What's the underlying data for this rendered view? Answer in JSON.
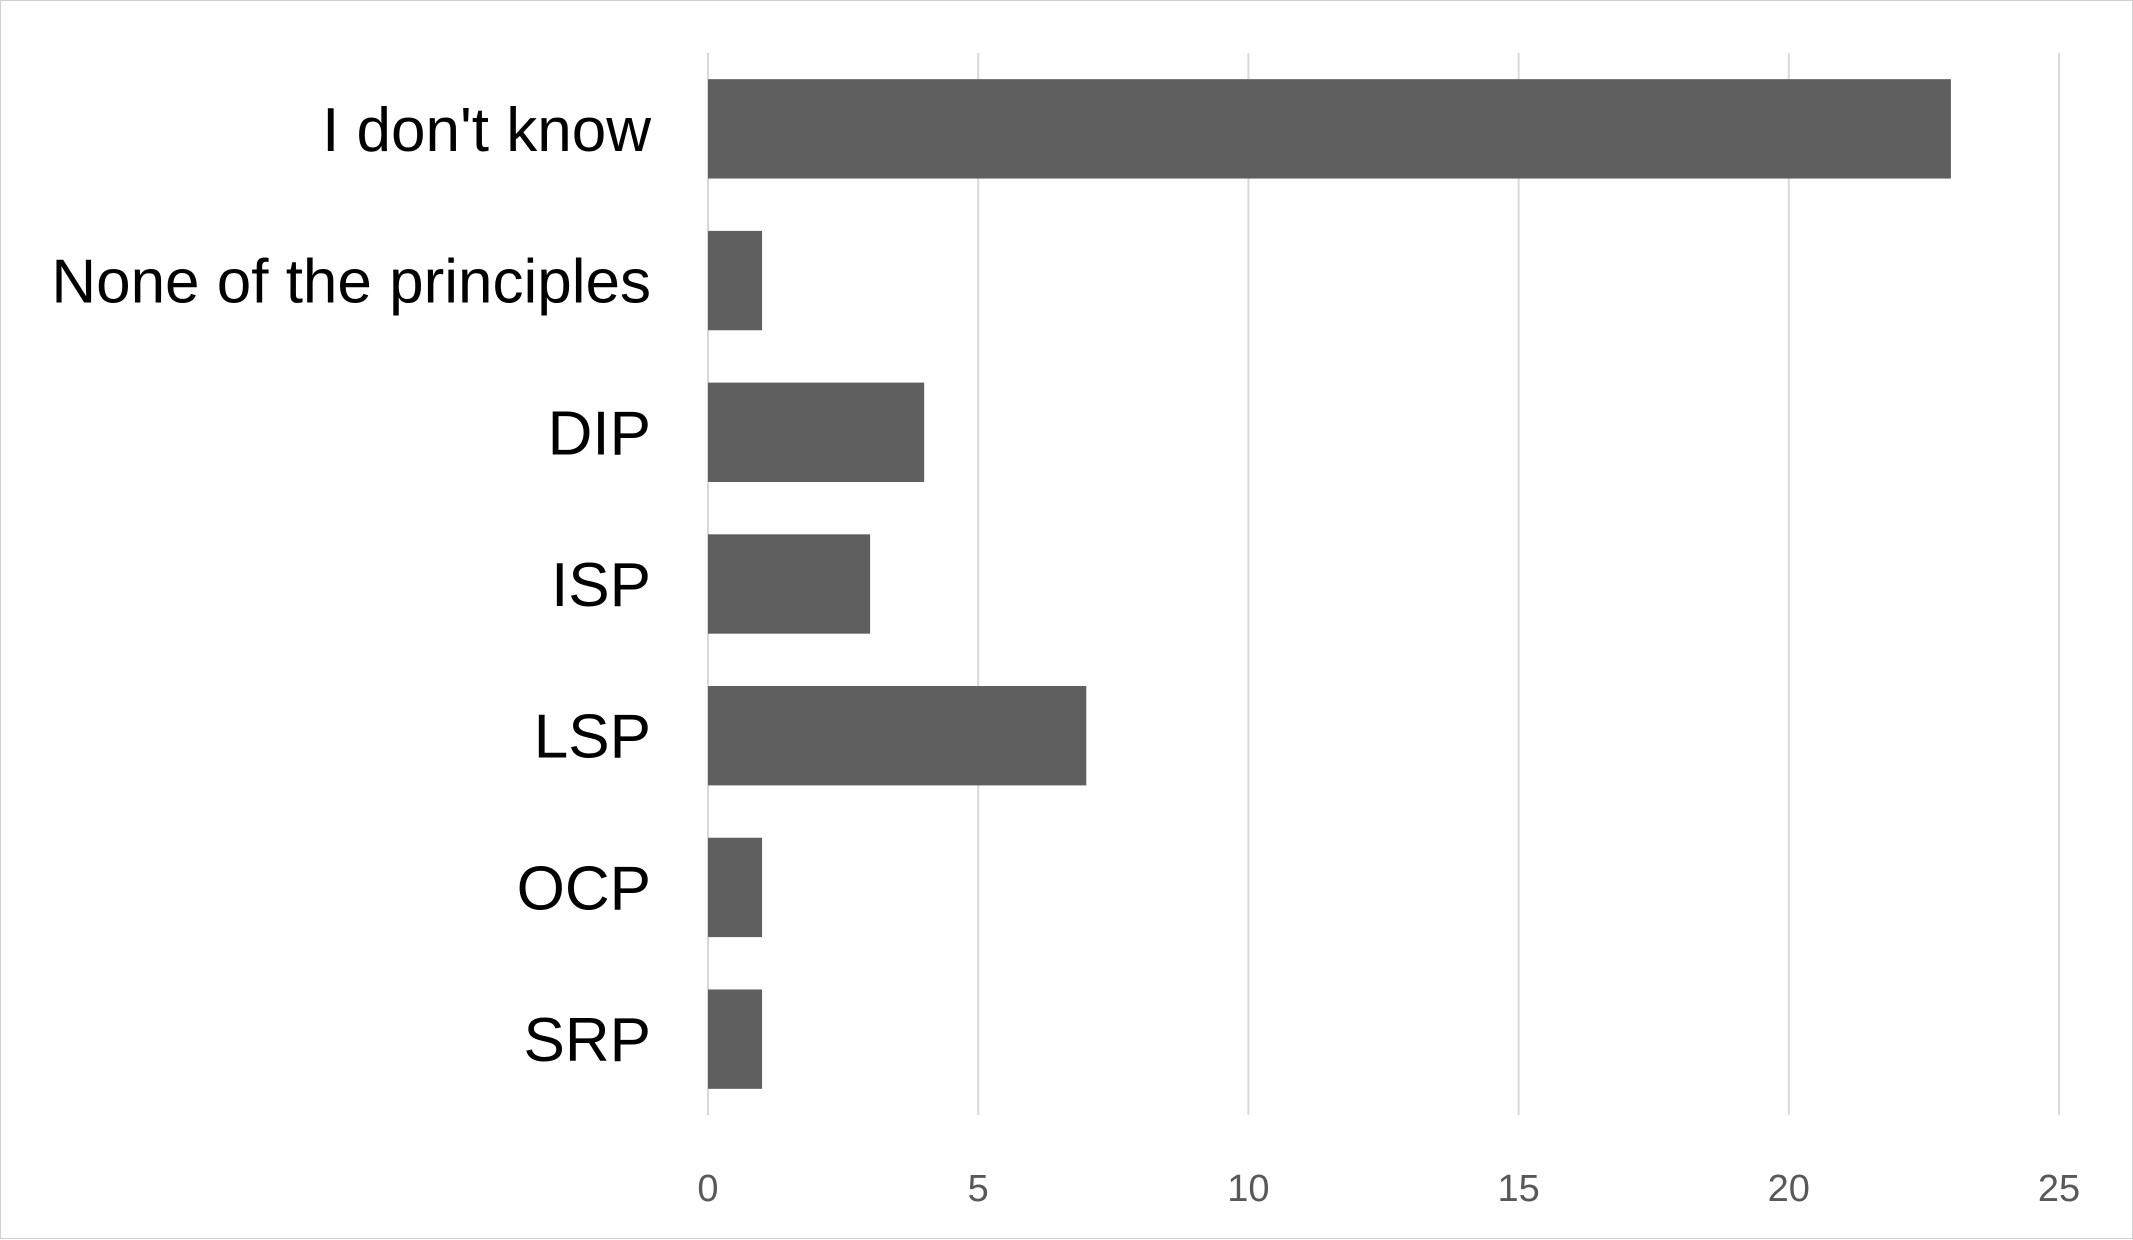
{
  "chart_data": {
    "type": "bar",
    "orientation": "horizontal",
    "categories": [
      "I don't know",
      "None of the principles",
      "DIP",
      "ISP",
      "LSP",
      "OCP",
      "SRP"
    ],
    "values": [
      23,
      1,
      4,
      3,
      7,
      1,
      1
    ],
    "title": "",
    "xlabel": "",
    "ylabel": "",
    "xlim": [
      0,
      25
    ],
    "xticks": [
      0,
      5,
      10,
      15,
      20,
      25
    ],
    "grid": "vertical",
    "legend": "none",
    "bar_color": "#5f5f5f"
  }
}
